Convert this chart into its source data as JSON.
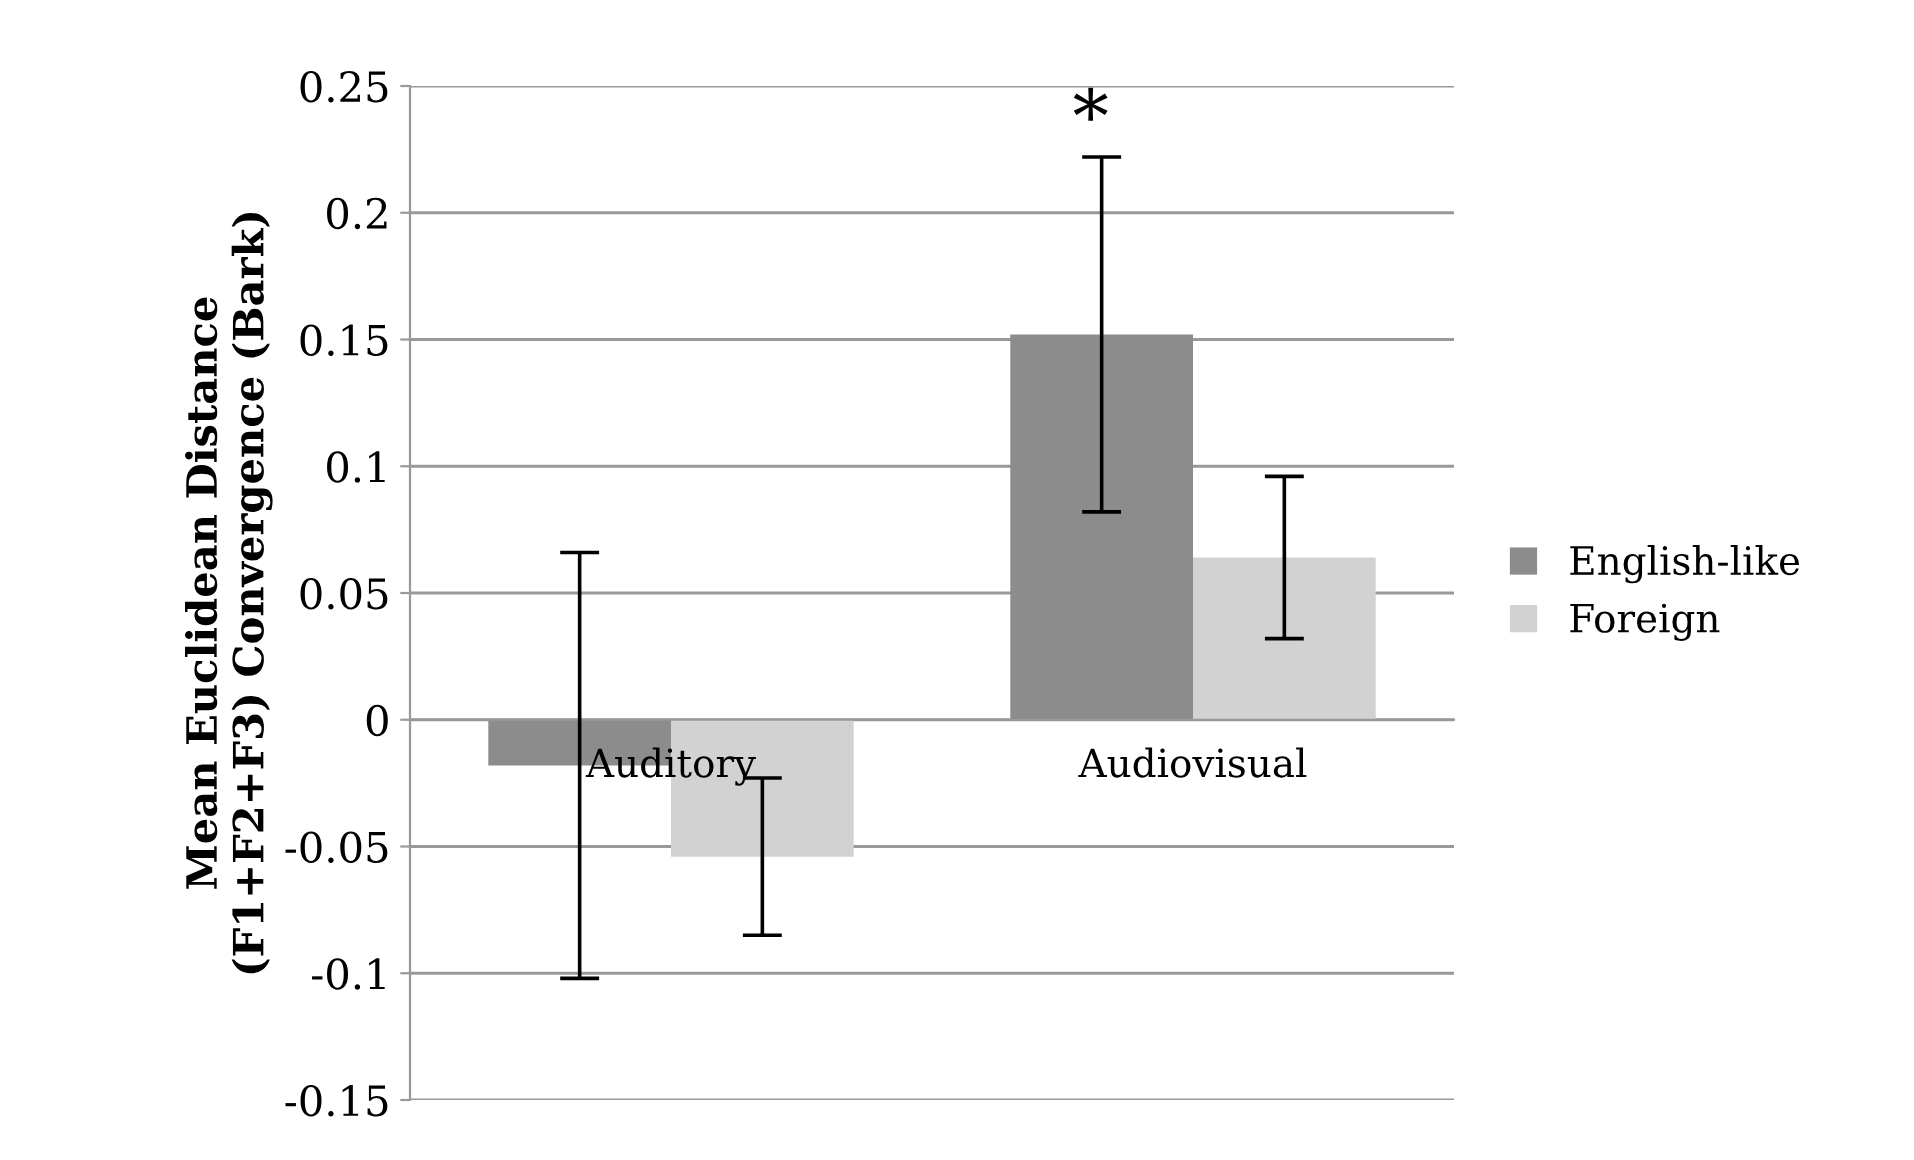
{
  "chart_data": {
    "type": "bar",
    "ylabel": "Mean Euclidean Distance\n(F1+F2+F3) Convergence (Bark)",
    "categories": [
      "Auditory",
      "Audiovisual"
    ],
    "series": [
      {
        "name": "English-like",
        "color": "#8c8c8c",
        "values": [
          -0.018,
          0.152
        ],
        "errors": [
          0.084,
          0.07
        ]
      },
      {
        "name": "Foreign",
        "color": "#d2d2d2",
        "values": [
          -0.054,
          0.064
        ],
        "errors": [
          0.031,
          0.032
        ]
      }
    ],
    "ylim": [
      -0.15,
      0.25
    ],
    "yticks": [
      -0.15,
      -0.1,
      -0.05,
      0,
      0.05,
      0.1,
      0.15,
      0.2,
      0.25
    ],
    "grid": "y",
    "legend": "right",
    "annotations": [
      "*"
    ]
  }
}
